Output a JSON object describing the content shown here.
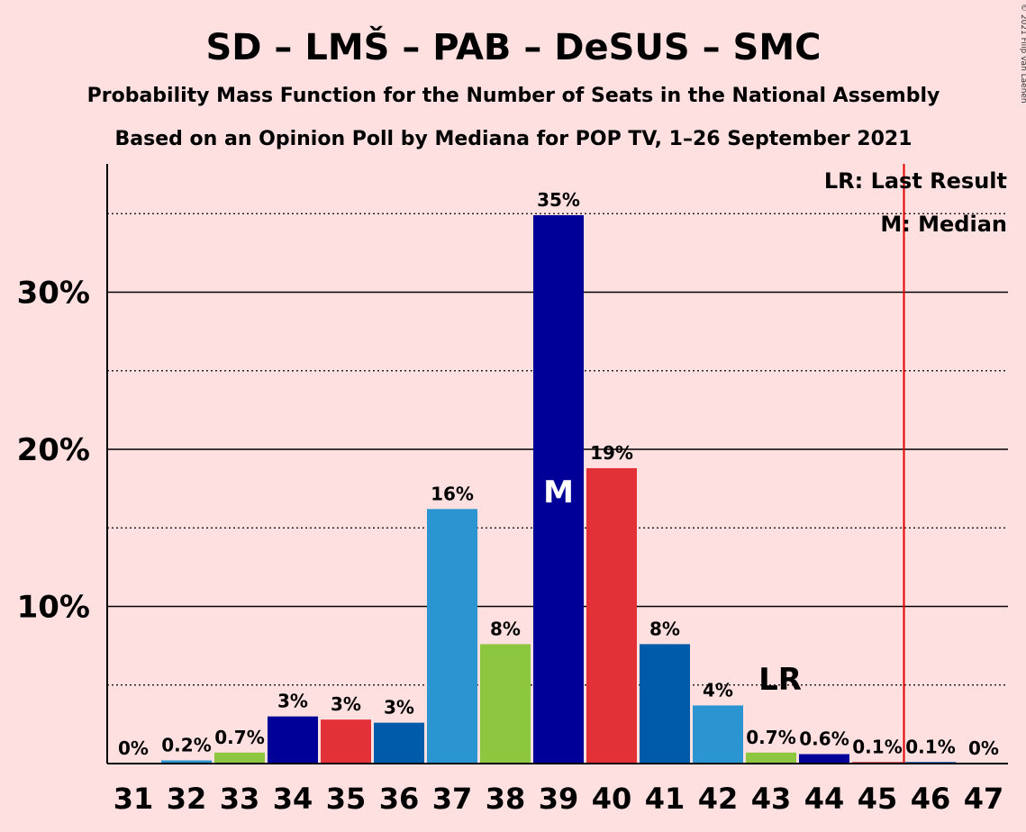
{
  "chart_data": {
    "type": "bar",
    "title": "SD – LMŠ – PAB – DeSUS – SMC",
    "subtitle1": "Probability Mass Function for the Number of Seats in the National Assembly",
    "subtitle2": "Based on an Opinion Poll by Mediana for POP TV, 1–26 September 2021",
    "copyright": "© 2021 Filip van Laenen",
    "categories": [
      "31",
      "32",
      "33",
      "34",
      "35",
      "36",
      "37",
      "38",
      "39",
      "40",
      "41",
      "42",
      "43",
      "44",
      "45",
      "46",
      "47"
    ],
    "values": [
      0,
      0.2,
      0.7,
      3.0,
      2.8,
      2.6,
      16.2,
      7.6,
      34.9,
      18.8,
      7.6,
      3.7,
      0.7,
      0.6,
      0.1,
      0.1,
      0
    ],
    "data_labels": [
      "0%",
      "0.2%",
      "0.7%",
      "3%",
      "3%",
      "3%",
      "16%",
      "8%",
      "35%",
      "19%",
      "8%",
      "4%",
      "0.7%",
      "0.6%",
      "0.1%",
      "0.1%",
      "0%"
    ],
    "bar_colors": [
      "#2B95D1",
      "#2B95D1",
      "#8DC63F",
      "#000099",
      "#E23237",
      "#005BAA",
      "#2B95D1",
      "#8DC63F",
      "#000099",
      "#E23237",
      "#005BAA",
      "#2B95D1",
      "#8DC63F",
      "#000099",
      "#E23237",
      "#005BAA",
      "#2B95D1"
    ],
    "yticks": [
      10,
      20,
      30
    ],
    "ytick_labels": [
      "10%",
      "20%",
      "30%"
    ],
    "ylim": [
      0,
      38
    ],
    "median": {
      "seat": "39",
      "label": "M"
    },
    "last_result": {
      "seat": "43",
      "label": "LR",
      "line_after_seat": "45"
    },
    "legend": {
      "last_result": "LR: Last Result",
      "median": "M: Median",
      "placement": "top-right"
    },
    "grid": true,
    "colors": {
      "background": "#FFE0E0",
      "last_result_line": "#E00000",
      "median_text": "#FFFFFF"
    }
  }
}
